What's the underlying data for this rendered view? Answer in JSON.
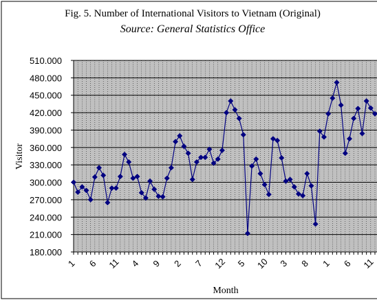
{
  "chart_data": {
    "type": "line",
    "title": "Fig. 5. Number of International Visitors to Vietnam (Original)",
    "subtitle": "Source: General Statistics Office",
    "x_label": "Month",
    "y_label": "Visitor",
    "categories": [
      "1",
      null,
      null,
      null,
      null,
      "6",
      null,
      null,
      null,
      null,
      "11",
      null,
      null,
      null,
      null,
      "4",
      null,
      null,
      null,
      null,
      "9",
      null,
      null,
      null,
      null,
      "2",
      null,
      null,
      null,
      null,
      "7",
      null,
      null,
      null,
      null,
      "12",
      null,
      null,
      null,
      null,
      "5",
      null,
      null,
      null,
      null,
      "10",
      null,
      null,
      null,
      null,
      "3",
      null,
      null,
      null,
      null,
      "8",
      null,
      null,
      null,
      null,
      "1",
      null,
      null,
      null,
      null,
      "6",
      null,
      null,
      null,
      null,
      "11",
      null
    ],
    "series": [
      {
        "name": "Visitor",
        "color": "#000080",
        "values": [
          300000,
          283000,
          292000,
          286000,
          270000,
          309000,
          325000,
          312000,
          265000,
          290000,
          290000,
          310000,
          348000,
          335000,
          307000,
          310000,
          282000,
          273000,
          302000,
          288000,
          276000,
          275000,
          307000,
          325000,
          370000,
          380000,
          362000,
          350000,
          305000,
          335000,
          343000,
          343000,
          357000,
          333000,
          340000,
          355000,
          420000,
          440000,
          425000,
          410000,
          382000,
          212000,
          328000,
          340000,
          315000,
          296000,
          279000,
          375000,
          372000,
          342000,
          302000,
          305000,
          292000,
          280000,
          277000,
          315000,
          294000,
          228000,
          388000,
          378000,
          418000,
          445000,
          472000,
          433000,
          350000,
          375000,
          410000,
          427000,
          384000,
          440000,
          428000,
          418000
        ]
      }
    ],
    "ylim": [
      180000,
      510000
    ],
    "yticks": [
      {
        "value": 180000,
        "label": "180.000"
      },
      {
        "value": 210000,
        "label": "210.000"
      },
      {
        "value": 240000,
        "label": "240.000"
      },
      {
        "value": 270000,
        "label": "270.000"
      },
      {
        "value": 300000,
        "label": "300.000"
      },
      {
        "value": 330000,
        "label": "330.000"
      },
      {
        "value": 360000,
        "label": "360.000"
      },
      {
        "value": 390000,
        "label": "390.000"
      },
      {
        "value": 420000,
        "label": "420.000"
      },
      {
        "value": 450000,
        "label": "450.000"
      },
      {
        "value": 480000,
        "label": "480.000"
      },
      {
        "value": 510000,
        "label": "510.000"
      }
    ],
    "grid": true
  }
}
